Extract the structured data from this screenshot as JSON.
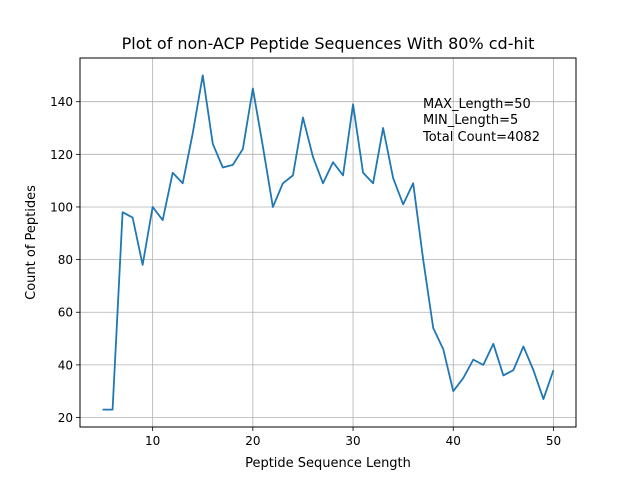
{
  "chart_data": {
    "type": "line",
    "title": "Plot of non-ACP Peptide Sequences With 80% cd-hit",
    "xlabel": "Peptide Sequence Length",
    "ylabel": "Count of Peptides",
    "xlim": [
      2.75,
      52.25
    ],
    "ylim": [
      16.4,
      156.6
    ],
    "xticks": [
      10,
      20,
      30,
      40,
      50
    ],
    "yticks": [
      20,
      40,
      60,
      80,
      100,
      120,
      140
    ],
    "grid": true,
    "line_color": "#1f77b4",
    "x": [
      5,
      6,
      7,
      8,
      9,
      10,
      11,
      12,
      13,
      14,
      15,
      16,
      17,
      18,
      19,
      20,
      21,
      22,
      23,
      24,
      25,
      26,
      27,
      28,
      29,
      30,
      31,
      32,
      33,
      34,
      35,
      36,
      37,
      38,
      39,
      40,
      41,
      42,
      43,
      44,
      45,
      46,
      47,
      48,
      49,
      50
    ],
    "values": [
      23,
      23,
      98,
      96,
      78,
      100,
      95,
      113,
      109,
      128,
      150,
      124,
      115,
      116,
      122,
      145,
      123,
      100,
      109,
      112,
      134,
      119,
      109,
      117,
      112,
      139,
      113,
      109,
      130,
      111,
      101,
      109,
      80,
      54,
      46,
      30,
      35,
      42,
      40,
      48,
      36,
      38,
      47,
      38,
      27,
      38
    ],
    "annotation": [
      "MAX_Length=50",
      "MIN_Length=5",
      "Total Count=4082"
    ]
  }
}
